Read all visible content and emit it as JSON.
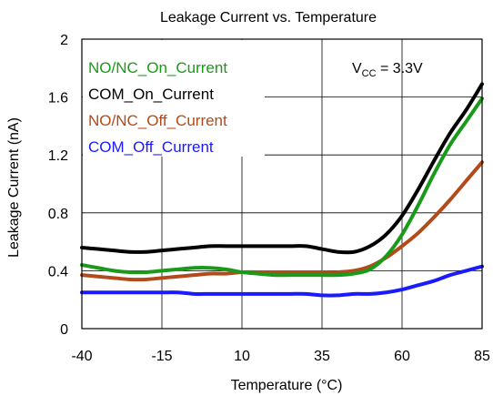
{
  "chart_data": {
    "type": "line",
    "title": "Leakage Current vs. Temperature",
    "xlabel": "Temperature (°C)",
    "ylabel": "Leakage Current (nA)",
    "xlim": [
      -40,
      85
    ],
    "ylim": [
      0,
      2
    ],
    "x_ticks": [
      -40,
      -15,
      10,
      35,
      60,
      85
    ],
    "x_tick_labels": [
      "-40",
      "-15",
      "10",
      "35",
      "60",
      "85"
    ],
    "y_ticks": [
      0,
      0.4,
      0.8,
      1.2,
      1.6,
      2
    ],
    "y_tick_labels": [
      "0",
      "0.4",
      "0.8",
      "1.2",
      "1.6",
      "2"
    ],
    "grid": true,
    "legend_position": "top-left",
    "annotation": {
      "base": "V",
      "sub": "CC",
      "rest": " = 3.3V",
      "position": "top-right"
    },
    "series": [
      {
        "name": "NO/NC_On_Current",
        "color": "#1a9a1a",
        "x": [
          -40,
          -35,
          -30,
          -25,
          -20,
          -15,
          -10,
          -5,
          0,
          5,
          10,
          15,
          20,
          25,
          30,
          35,
          40,
          45,
          50,
          55,
          60,
          65,
          70,
          75,
          80,
          85
        ],
        "y": [
          0.44,
          0.42,
          0.4,
          0.39,
          0.39,
          0.4,
          0.41,
          0.42,
          0.42,
          0.41,
          0.39,
          0.38,
          0.37,
          0.37,
          0.37,
          0.37,
          0.37,
          0.38,
          0.41,
          0.5,
          0.65,
          0.85,
          1.07,
          1.27,
          1.43,
          1.59
        ]
      },
      {
        "name": "COM_On_Current",
        "color": "#000000",
        "x": [
          -40,
          -35,
          -30,
          -25,
          -20,
          -15,
          -10,
          -5,
          0,
          5,
          10,
          15,
          20,
          25,
          30,
          35,
          40,
          45,
          50,
          55,
          60,
          65,
          70,
          75,
          80,
          85
        ],
        "y": [
          0.56,
          0.55,
          0.54,
          0.53,
          0.53,
          0.54,
          0.55,
          0.56,
          0.57,
          0.57,
          0.57,
          0.57,
          0.57,
          0.57,
          0.57,
          0.55,
          0.53,
          0.53,
          0.57,
          0.65,
          0.78,
          0.96,
          1.16,
          1.35,
          1.51,
          1.69
        ]
      },
      {
        "name": "NO/NC_Off_Current",
        "color": "#b34a1a",
        "x": [
          -40,
          -35,
          -30,
          -25,
          -20,
          -15,
          -10,
          -5,
          0,
          5,
          10,
          15,
          20,
          25,
          30,
          35,
          40,
          45,
          50,
          55,
          60,
          65,
          70,
          75,
          80,
          85
        ],
        "y": [
          0.37,
          0.36,
          0.35,
          0.34,
          0.34,
          0.35,
          0.36,
          0.37,
          0.38,
          0.38,
          0.39,
          0.39,
          0.39,
          0.39,
          0.39,
          0.39,
          0.39,
          0.4,
          0.43,
          0.49,
          0.57,
          0.66,
          0.77,
          0.89,
          1.02,
          1.15
        ]
      },
      {
        "name": "COM_Off_Current",
        "color": "#1a1aff",
        "x": [
          -40,
          -35,
          -30,
          -25,
          -20,
          -15,
          -10,
          -5,
          0,
          5,
          10,
          15,
          20,
          25,
          30,
          35,
          40,
          45,
          50,
          55,
          60,
          65,
          70,
          75,
          80,
          85
        ],
        "y": [
          0.25,
          0.25,
          0.25,
          0.25,
          0.25,
          0.25,
          0.25,
          0.24,
          0.24,
          0.24,
          0.24,
          0.24,
          0.24,
          0.24,
          0.24,
          0.23,
          0.23,
          0.24,
          0.24,
          0.25,
          0.27,
          0.3,
          0.33,
          0.37,
          0.4,
          0.43
        ]
      }
    ]
  }
}
